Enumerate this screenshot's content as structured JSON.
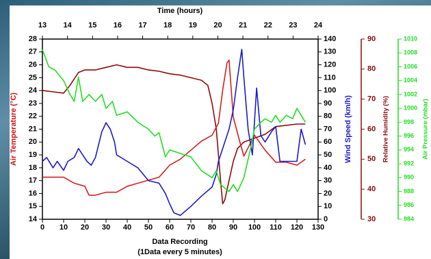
{
  "chart_data": {
    "type": "line",
    "x_label": [
      "Data Recording",
      "(1Data every 5 minutes)"
    ],
    "xlim": [
      0,
      130
    ],
    "xticks": [
      0,
      10,
      20,
      30,
      40,
      50,
      60,
      70,
      80,
      90,
      100,
      110,
      120,
      130
    ],
    "x2_label": "Time (hours)",
    "x2lim": [
      13,
      24
    ],
    "x2ticks": [
      13,
      14,
      15,
      16,
      17,
      18,
      19,
      20,
      21,
      22,
      23,
      24
    ],
    "y_label": "Air Temperature (°C)",
    "y_color": "#cc1111",
    "ylim": [
      14,
      28
    ],
    "yticks": [
      14,
      15,
      16,
      17,
      18,
      19,
      20,
      21,
      22,
      23,
      24,
      25,
      26,
      27,
      28
    ],
    "y2_label": "Wind Speed (km/h)",
    "y2_color": "#1a1acc",
    "y2lim": [
      0,
      140
    ],
    "y2ticks": [
      0,
      10,
      20,
      30,
      40,
      50,
      60,
      70,
      80,
      90,
      100,
      110,
      120,
      130,
      140
    ],
    "y3_label": "Relative Humidity (%)",
    "y3_color": "#8b0a0a",
    "y3lim": [
      30,
      90
    ],
    "y3ticks": [
      30,
      40,
      50,
      60,
      70,
      80,
      90
    ],
    "y4_label": "Air Pressure (mbar)",
    "y4_color": "#22dd22",
    "y4lim": [
      984,
      1010
    ],
    "y4ticks": [
      984,
      986,
      988,
      990,
      992,
      994,
      996,
      998,
      1000,
      1002,
      1004,
      1006,
      1008,
      1010
    ],
    "series": [
      {
        "name": "Air Temperature",
        "axis": "y",
        "color": "#8b0a0a",
        "x": [
          0,
          5,
          10,
          13,
          17,
          20,
          25,
          30,
          35,
          40,
          45,
          50,
          55,
          60,
          65,
          70,
          75,
          78,
          80,
          82,
          84,
          85,
          86,
          88,
          90,
          92,
          95,
          100,
          105,
          110,
          115,
          120,
          124
        ],
        "values": [
          24,
          23.9,
          23.8,
          24.4,
          25.4,
          25.6,
          25.6,
          25.8,
          26,
          25.8,
          25.8,
          25.6,
          25.5,
          25.3,
          25.2,
          25,
          24.8,
          24.4,
          23,
          21,
          17,
          15.2,
          15.5,
          17,
          18.5,
          19.5,
          20,
          20.3,
          20.6,
          21.2,
          21.3,
          21.4,
          21.4
        ]
      },
      {
        "name": "Relative Humidity",
        "axis": "y3",
        "color": "#d42020",
        "x": [
          0,
          5,
          10,
          15,
          20,
          22,
          25,
          30,
          35,
          40,
          45,
          50,
          55,
          60,
          65,
          70,
          75,
          80,
          83,
          85,
          87,
          88,
          90,
          93,
          95,
          100,
          105,
          110,
          115,
          120,
          124
        ],
        "values": [
          44,
          44,
          44,
          42,
          41,
          38,
          38,
          39,
          39,
          41,
          42,
          43,
          44,
          48,
          50,
          53,
          56,
          58,
          62,
          73,
          82,
          83,
          64,
          56,
          51,
          58,
          53,
          49,
          49,
          48,
          50
        ]
      },
      {
        "name": "Wind Speed",
        "axis": "y2",
        "color": "#1a1acc",
        "x": [
          0,
          2,
          5,
          7,
          10,
          12,
          15,
          17,
          19,
          21,
          23,
          25,
          28,
          30,
          32,
          34,
          35,
          40,
          45,
          50,
          55,
          58,
          60,
          62,
          65,
          70,
          75,
          80,
          82,
          83,
          85,
          88,
          90,
          92,
          94,
          95,
          97,
          99,
          101,
          103,
          105,
          108,
          110,
          112,
          115,
          120,
          122,
          124
        ],
        "values": [
          45,
          48,
          40,
          45,
          38,
          45,
          48,
          55,
          50,
          45,
          42,
          48,
          68,
          75,
          70,
          60,
          50,
          45,
          40,
          30,
          28,
          20,
          12,
          5,
          3,
          10,
          18,
          25,
          35,
          45,
          55,
          70,
          85,
          110,
          132,
          110,
          70,
          50,
          102,
          65,
          60,
          68,
          72,
          45,
          45,
          45,
          70,
          58
        ]
      },
      {
        "name": "Air Pressure",
        "axis": "y4",
        "color": "#22dd22",
        "x": [
          0,
          3,
          6,
          10,
          13,
          15,
          17,
          19,
          22,
          25,
          28,
          30,
          33,
          35,
          40,
          45,
          50,
          53,
          55,
          58,
          60,
          65,
          70,
          75,
          80,
          82,
          84,
          86,
          88,
          90,
          92,
          95,
          98,
          100,
          103,
          105,
          108,
          110,
          112,
          115,
          118,
          120,
          124
        ],
        "values": [
          1008.5,
          1006,
          1005.5,
          1004,
          1002,
          1001,
          1004.5,
          1001,
          1002,
          1001,
          1002,
          1000,
          1001,
          999,
          999.5,
          998,
          997,
          996,
          996.5,
          993,
          994,
          993.5,
          993,
          991,
          990,
          991,
          989,
          988.5,
          988,
          989,
          988,
          990,
          994,
          997,
          998,
          998.5,
          998,
          999,
          998,
          999,
          998.5,
          1000,
          998
        ]
      }
    ]
  }
}
